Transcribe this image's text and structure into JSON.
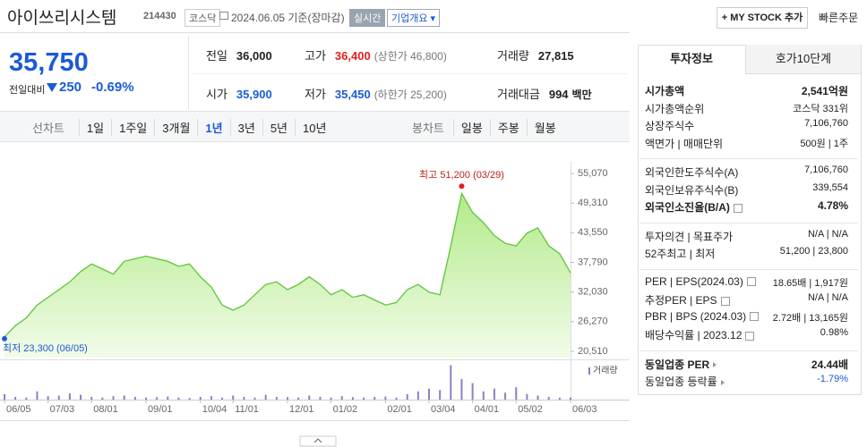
{
  "header": {
    "name": "아이쓰리시스템",
    "code": "214430",
    "market": "코스닥",
    "date": "2024.06.05 기준(장마감)",
    "realtime": "실시간",
    "company_info": "기업개요",
    "my_stock": "+ MY STOCK 추가",
    "quick_order": "빠른주문"
  },
  "price": {
    "current": "35,750",
    "change_label": "전일대비",
    "change": "250",
    "change_rate": "-0.69%"
  },
  "stats": [
    [
      {
        "label": "전일",
        "value": "36,000"
      },
      {
        "label": "고가",
        "value": "36,400",
        "note": "(상한가 46,800)",
        "color": "#e0201b"
      },
      {
        "label": "거래량",
        "value": "27,815"
      }
    ],
    [
      {
        "label": "시가",
        "value": "35,900",
        "color": "#1a5bd6"
      },
      {
        "label": "저가",
        "value": "35,450",
        "note": "(하한가 25,200)",
        "color": "#1a5bd6"
      },
      {
        "label": "거래대금",
        "value": "994",
        "unit": "백만"
      }
    ]
  ],
  "chart_tabs": {
    "line_label": "선차트",
    "line_periods": [
      "1일",
      "1주일",
      "3개월",
      "1년",
      "3년",
      "5년",
      "10년"
    ],
    "active_index": 3,
    "candle_label": "봉차트",
    "candle_periods": [
      "일봉",
      "주봉",
      "월봉"
    ]
  },
  "chart_data": {
    "type": "line",
    "categories": [
      "06/05",
      null,
      null,
      null,
      "07/03",
      null,
      null,
      null,
      "08/01",
      null,
      null,
      null,
      null,
      "09/01",
      null,
      null,
      null,
      null,
      "10/04",
      null,
      null,
      "11/01",
      null,
      null,
      null,
      null,
      "12/01",
      null,
      null,
      null,
      "01/02",
      null,
      null,
      null,
      null,
      "02/01",
      null,
      null,
      null,
      "03/04",
      null,
      null,
      null,
      "04/01",
      null,
      null,
      null,
      "05/02",
      null,
      null,
      null,
      null,
      "06/03"
    ],
    "series": [
      {
        "color": "#5cc63a",
        "values": [
          23300,
          25500,
          27000,
          29500,
          31000,
          32500,
          34000,
          36000,
          37500,
          36500,
          35500,
          38000,
          38500,
          39000,
          38500,
          38000,
          37000,
          37500,
          35000,
          33000,
          29500,
          28500,
          29500,
          31500,
          33500,
          34000,
          32500,
          33500,
          35000,
          33500,
          31500,
          32500,
          31000,
          31500,
          30500,
          29500,
          30000,
          32500,
          33500,
          32000,
          31500,
          41000,
          51200,
          47500,
          45500,
          43000,
          41500,
          41000,
          43500,
          44500,
          41000,
          39500,
          35750
        ]
      },
      {
        "name": "거래량",
        "color": "#8d7fc4",
        "axis": "y2",
        "values": [
          40000,
          20000,
          15000,
          60000,
          25000,
          30000,
          45000,
          35000,
          20000,
          15000,
          25000,
          30000,
          20000,
          15000,
          18000,
          22000,
          15000,
          12000,
          20000,
          25000,
          15000,
          30000,
          20000,
          15000,
          35000,
          20000,
          18000,
          15000,
          30000,
          20000,
          15000,
          25000,
          18000,
          15000,
          20000,
          22000,
          15000,
          40000,
          60000,
          80000,
          70000,
          250000,
          150000,
          120000,
          60000,
          80000,
          50000,
          90000,
          40000,
          30000,
          20000,
          15000,
          15000
        ]
      }
    ],
    "ylim": [
      20510,
      55070
    ],
    "yticks": [
      {
        "value": 20510,
        "label": "20,510"
      },
      {
        "value": 26270,
        "label": "26,270"
      },
      {
        "value": 32030,
        "label": "32,030"
      },
      {
        "value": 37790,
        "label": "37,790"
      },
      {
        "value": 43550,
        "label": "43,550"
      },
      {
        "value": 49310,
        "label": "49,310"
      },
      {
        "value": 55070,
        "label": "55,070"
      }
    ],
    "y2lim": [
      0,
      260000
    ],
    "annotations": [
      {
        "text": "최고 51,200 (03/29)"
      },
      {
        "text": "최저 23,300 (06/05)"
      }
    ]
  },
  "invest_info": {
    "tabs": [
      "투자정보",
      "호가10단계"
    ],
    "groups": [
      [
        {
          "label": "시가총액",
          "value": "2,541억원",
          "bold": true
        },
        {
          "label": "시가총액순위",
          "value": "코스닥 331위"
        },
        {
          "label": "상장주식수",
          "value": "7,106,760"
        },
        {
          "label": "액면가 | 매매단위",
          "value": "500원 | 1주"
        }
      ],
      [
        {
          "label": "외국인한도주식수(A)",
          "value": "7,106,760"
        },
        {
          "label": "외국인보유주식수(B)",
          "value": "339,554"
        },
        {
          "label": "외국인소진율(B/A)",
          "value": "4.78%",
          "bold": true,
          "help": true
        }
      ],
      [
        {
          "label": "투자의견 | 목표주가",
          "value": "N/A | N/A"
        },
        {
          "label": "52주최고 | 최저",
          "value": "51,200 | 23,800"
        }
      ],
      [
        {
          "label": "PER | EPS(2024.03)",
          "value": "18.65배 | 1,917원",
          "help": true
        },
        {
          "label": "추정PER | EPS",
          "value": "N/A | N/A",
          "help": true
        },
        {
          "label": "PBR | BPS (2024.03)",
          "value": "2.72배 | 13,165원",
          "help": true
        },
        {
          "label": "배당수익률 | 2023.12",
          "value": "0.98%",
          "help": true
        }
      ],
      [
        {
          "label": "동일업종 PER",
          "value": "24.44배",
          "bold": true,
          "arrow": true
        },
        {
          "label": "동일업종 등락률",
          "value": "-1.79%",
          "color": "#1a5bd6",
          "arrow": true
        }
      ]
    ]
  }
}
